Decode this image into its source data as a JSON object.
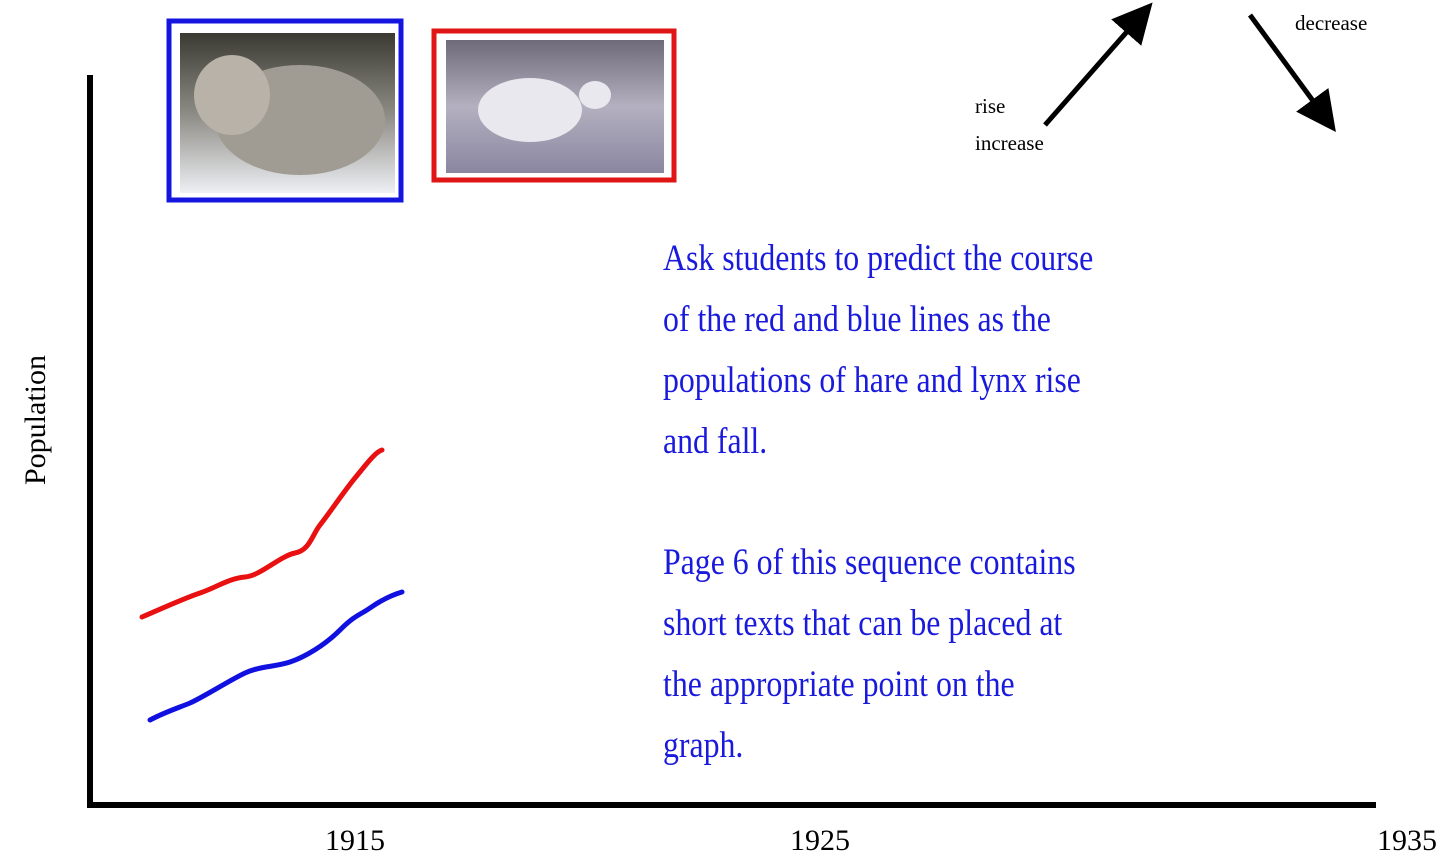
{
  "y_axis_label": "Population",
  "x_axis_labels": [
    "1915",
    "1925",
    "1935"
  ],
  "arrows": {
    "up_labels": [
      "rise",
      "increase"
    ],
    "down_label": "decrease"
  },
  "notes": [
    [
      "Ask students to predict the course",
      "of the red and blue lines as the",
      "populations of hare and lynx rise",
      "and fall."
    ],
    [
      "Page 6 of this sequence contains",
      "short texts that can be placed at",
      "the appropriate point on the",
      "graph."
    ]
  ]
}
